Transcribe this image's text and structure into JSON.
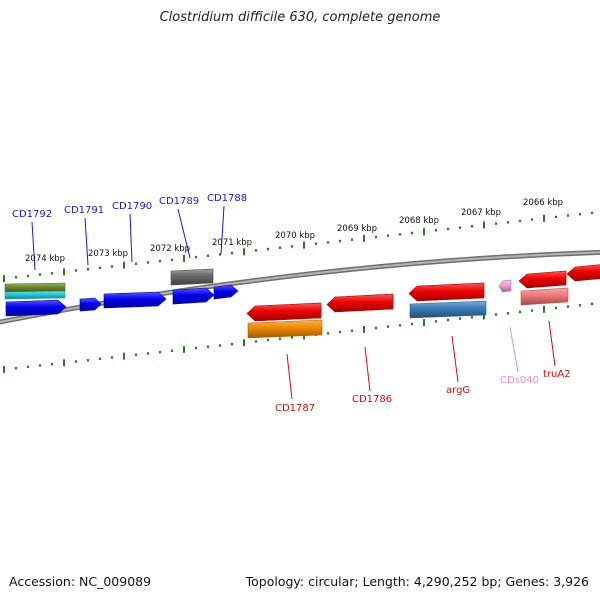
{
  "title": "Clostridium difficile 630, complete genome",
  "footer": {
    "accession": "Accession: NC_009089",
    "summary": "Topology: circular; Length: 4,290,252 bp; Genes: 3,926"
  },
  "colors": {
    "backbone": "#8a8a8a",
    "tick": "#2a7a1f",
    "forward_label": "#1a1acc",
    "reverse_label": "#cc1111",
    "rna_label": "#e892c4"
  },
  "kbp_ticks": [
    {
      "label": "2074 kbp"
    },
    {
      "label": "2073 kbp"
    },
    {
      "label": "2072 kbp"
    },
    {
      "label": "2071 kbp"
    },
    {
      "label": "2070 kbp"
    },
    {
      "label": "2069 kbp"
    },
    {
      "label": "2068 kbp"
    },
    {
      "label": "2067 kbp"
    },
    {
      "label": "2066 kbp"
    }
  ],
  "feature_labels": [
    {
      "label": "CD1792",
      "strand": "forward"
    },
    {
      "label": "CD1791",
      "strand": "forward"
    },
    {
      "label": "CD1790",
      "strand": "forward"
    },
    {
      "label": "CD1789",
      "strand": "forward"
    },
    {
      "label": "CD1788",
      "strand": "forward"
    },
    {
      "label": "CD1787",
      "strand": "reverse"
    },
    {
      "label": "CD1786",
      "strand": "reverse"
    },
    {
      "label": "argG",
      "strand": "reverse"
    },
    {
      "label": "CDs040",
      "strand": "rna"
    },
    {
      "label": "truA2",
      "strand": "reverse"
    }
  ],
  "features": [
    {
      "kind": "CDS",
      "strand": "forward",
      "color": "#0000ee"
    },
    {
      "kind": "gene",
      "strand": "forward",
      "color": "#6a8a2a"
    },
    {
      "kind": "misc",
      "strand": "forward",
      "color": "#22c8d8"
    },
    {
      "kind": "CDS",
      "strand": "forward",
      "color": "#0000ee"
    },
    {
      "kind": "CDS",
      "strand": "forward",
      "color": "#0000ee"
    },
    {
      "kind": "CDS",
      "strand": "forward",
      "color": "#0000ee"
    },
    {
      "kind": "CDS",
      "strand": "forward",
      "color": "#0000ee"
    },
    {
      "kind": "gene",
      "strand": "forward",
      "color": "#666666"
    },
    {
      "kind": "CDS",
      "strand": "reverse",
      "color": "#ee0000"
    },
    {
      "kind": "gene",
      "strand": "reverse",
      "color": "#ee8800"
    },
    {
      "kind": "CDS",
      "strand": "reverse",
      "color": "#ee0000"
    },
    {
      "kind": "CDS",
      "strand": "reverse",
      "color": "#ee0000"
    },
    {
      "kind": "gene",
      "strand": "reverse",
      "color": "#3a7ab5"
    },
    {
      "kind": "tRNA",
      "strand": "forward",
      "color": "#f0a0d8"
    },
    {
      "kind": "CDS",
      "strand": "reverse",
      "color": "#ee0000"
    },
    {
      "kind": "gene",
      "strand": "reverse",
      "color": "#ee7777"
    },
    {
      "kind": "CDS",
      "strand": "reverse",
      "color": "#ee0000"
    }
  ]
}
